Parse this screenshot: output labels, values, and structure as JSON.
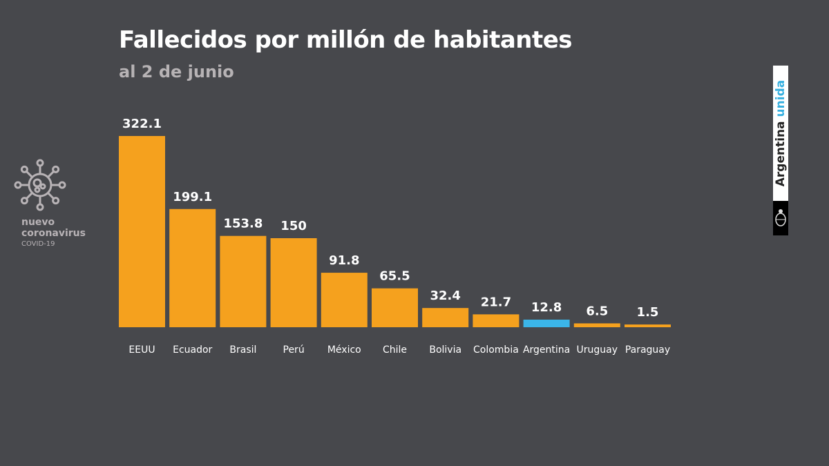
{
  "header": {
    "title": "Fallecidos por millón de habitantes",
    "subtitle": "al 2 de junio"
  },
  "branding": {
    "left_line1": "nuevo",
    "left_line2": "coronavirus",
    "left_line3": "COVID-19",
    "right_word1": "Argentina",
    "right_word2": "unida",
    "icons": [
      "coronavirus-icon",
      "argentina-coat-of-arms-icon"
    ]
  },
  "colors": {
    "background": "#47484c",
    "bar": "#f5a11e",
    "highlight": "#3bb5e8",
    "text": "#ffffff",
    "subtext": "#b7b3b5"
  },
  "chart_data": {
    "type": "bar",
    "title": "Fallecidos por millón de habitantes",
    "subtitle": "al 2 de junio",
    "categories": [
      "EEUU",
      "Ecuador",
      "Brasil",
      "Perú",
      "México",
      "Chile",
      "Bolivia",
      "Colombia",
      "Argentina",
      "Uruguay",
      "Paraguay"
    ],
    "values": [
      322.1,
      199.1,
      153.8,
      150,
      91.8,
      65.5,
      32.4,
      21.7,
      12.8,
      6.5,
      1.5
    ],
    "labels": [
      "322.1",
      "199.1",
      "153.8",
      "150",
      "91.8",
      "65.5",
      "32.4",
      "21.7",
      "12.8",
      "6.5",
      "1.5"
    ],
    "highlight": "Argentina",
    "grid": false,
    "ylim": [
      0,
      322.1
    ]
  }
}
